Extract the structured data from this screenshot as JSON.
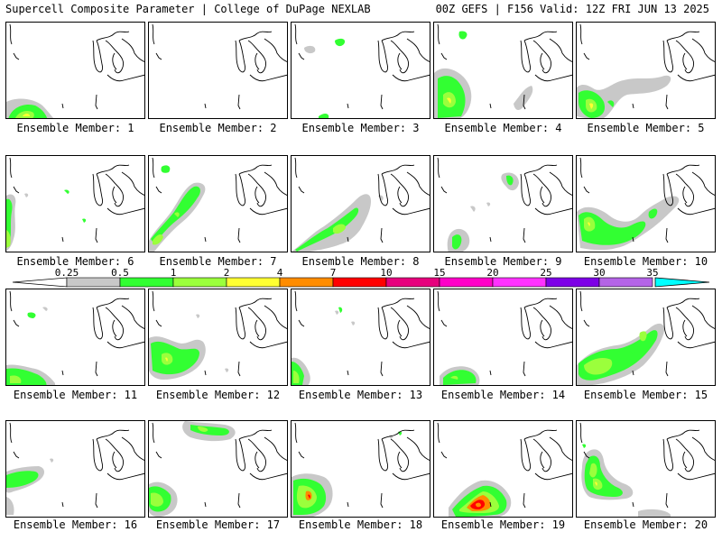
{
  "header": {
    "title": "Supercell Composite Parameter | College of DuPage NEXLAB",
    "run_info": "00Z GEFS | F156 Valid: 12Z FRI JUN 13 2025"
  },
  "colorbar": {
    "labels": [
      "0.25",
      "0.5",
      "1",
      "2",
      "4",
      "7",
      "10",
      "15",
      "20",
      "25",
      "30",
      "35"
    ],
    "colors": [
      "#c8c8c8",
      "#32ff32",
      "#9bff3c",
      "#ffff32",
      "#ff8c00",
      "#ff0000",
      "#e6007d",
      "#ff00c8",
      "#ff32ff",
      "#7d00e6",
      "#b464e6",
      "#00ffff"
    ]
  },
  "members": [
    {
      "label": "Ensemble Member: 1"
    },
    {
      "label": "Ensemble Member: 2"
    },
    {
      "label": "Ensemble Member: 3"
    },
    {
      "label": "Ensemble Member: 4"
    },
    {
      "label": "Ensemble Member: 5"
    },
    {
      "label": "Ensemble Member: 6"
    },
    {
      "label": "Ensemble Member: 7"
    },
    {
      "label": "Ensemble Member: 8"
    },
    {
      "label": "Ensemble Member: 9"
    },
    {
      "label": "Ensemble Member: 10"
    },
    {
      "label": "Ensemble Member: 11"
    },
    {
      "label": "Ensemble Member: 12"
    },
    {
      "label": "Ensemble Member: 13"
    },
    {
      "label": "Ensemble Member: 14"
    },
    {
      "label": "Ensemble Member: 15"
    },
    {
      "label": "Ensemble Member: 16"
    },
    {
      "label": "Ensemble Member: 17"
    },
    {
      "label": "Ensemble Member: 18"
    },
    {
      "label": "Ensemble Member: 19"
    },
    {
      "label": "Ensemble Member: 20"
    }
  ]
}
